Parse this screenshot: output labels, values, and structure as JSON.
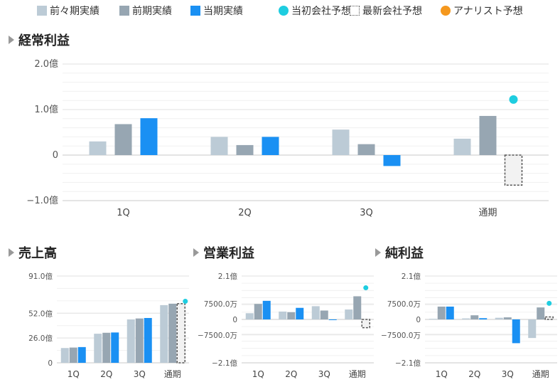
{
  "legend": [
    {
      "label": "前々期実績",
      "type": "square",
      "color": "#bccbd6"
    },
    {
      "label": "前期実績",
      "type": "square",
      "color": "#97a6b2"
    },
    {
      "label": "当期実績",
      "type": "square",
      "color": "#1a90f3"
    },
    {
      "label": "当初会社予想",
      "type": "circle",
      "color": "#1ecde0"
    },
    {
      "label": "最新会社予想",
      "type": "dashed",
      "color": "#555555"
    },
    {
      "label": "アナリスト予想",
      "type": "circle",
      "color": "#f5981e"
    }
  ],
  "colors": {
    "prev2": "#bccbd6",
    "prev1": "#97a6b2",
    "current": "#1a90f3",
    "initial_forecast": "#1ecde0",
    "latest_forecast": "#555555"
  },
  "chart_data": [
    {
      "type": "bar",
      "title": "経常利益",
      "unit": "億",
      "categories": [
        "1Q",
        "2Q",
        "3Q",
        "通期"
      ],
      "ylim": [
        -1.0,
        2.0
      ],
      "yticks": [
        {
          "value": 2.0,
          "label": "2.0億"
        },
        {
          "value": 1.0,
          "label": "1.0億"
        },
        {
          "value": 0,
          "label": "0"
        },
        {
          "value": -1.0,
          "label": "−1.0億"
        }
      ],
      "series": [
        {
          "name": "前々期実績",
          "values": [
            0.3,
            0.4,
            0.56,
            0.36
          ]
        },
        {
          "name": "前期実績",
          "values": [
            0.68,
            0.22,
            0.24,
            0.86
          ]
        },
        {
          "name": "当期実績",
          "values": [
            0.81,
            0.4,
            -0.24,
            null
          ]
        }
      ],
      "initial_forecast": {
        "category": "通期",
        "value": 1.22
      },
      "latest_forecast": {
        "category": "通期",
        "value": -0.66
      }
    },
    {
      "type": "bar",
      "title": "売上高",
      "unit": "億",
      "categories": [
        "1Q",
        "2Q",
        "3Q",
        "通期"
      ],
      "ylim": [
        0,
        91.0
      ],
      "yticks": [
        {
          "value": 91.0,
          "label": "91.0億"
        },
        {
          "value": 52.0,
          "label": "52.0億"
        },
        {
          "value": 26.0,
          "label": "26.0億"
        },
        {
          "value": 0,
          "label": "0"
        }
      ],
      "series": [
        {
          "name": "前々期実績",
          "values": [
            15.5,
            30.5,
            45.5,
            60.5
          ]
        },
        {
          "name": "前期実績",
          "values": [
            16.0,
            31.5,
            46.5,
            62.0
          ]
        },
        {
          "name": "当期実績",
          "values": [
            16.5,
            31.8,
            47.0,
            null
          ]
        }
      ],
      "initial_forecast": {
        "category": "通期",
        "value": 64.5
      },
      "latest_forecast": {
        "category": "通期",
        "value": 62.0
      }
    },
    {
      "type": "bar",
      "title": "営業利益",
      "unit": "億",
      "categories": [
        "1Q",
        "2Q",
        "3Q",
        "通期"
      ],
      "ylim": [
        -2.1,
        2.1
      ],
      "yticks": [
        {
          "value": 2.1,
          "label": "2.1億"
        },
        {
          "value": 0.75,
          "label": "7500.0万"
        },
        {
          "value": 0,
          "label": "0"
        },
        {
          "value": -0.75,
          "label": "−7500.0万"
        },
        {
          "value": -2.1,
          "label": "−2.1億"
        }
      ],
      "series": [
        {
          "name": "前々期実績",
          "values": [
            0.3,
            0.38,
            0.64,
            0.48
          ]
        },
        {
          "name": "前期実績",
          "values": [
            0.75,
            0.35,
            0.43,
            1.12
          ]
        },
        {
          "name": "当期実績",
          "values": [
            0.9,
            0.56,
            -0.01,
            null
          ]
        }
      ],
      "initial_forecast": {
        "category": "通期",
        "value": 1.53
      },
      "latest_forecast": {
        "category": "通期",
        "value": -0.4
      }
    },
    {
      "type": "bar",
      "title": "純利益",
      "unit": "億",
      "categories": [
        "1Q",
        "2Q",
        "3Q",
        "通期"
      ],
      "ylim": [
        -2.1,
        2.1
      ],
      "yticks": [
        {
          "value": 2.1,
          "label": "2.1億"
        },
        {
          "value": 0.75,
          "label": "7500.0万"
        },
        {
          "value": 0,
          "label": "0"
        },
        {
          "value": -0.75,
          "label": "−7500.0万"
        },
        {
          "value": -2.1,
          "label": "−2.1億"
        }
      ],
      "series": [
        {
          "name": "前々期実績",
          "values": [
            0.03,
            0.05,
            0.08,
            -0.9
          ]
        },
        {
          "name": "前期実績",
          "values": [
            0.62,
            0.2,
            0.1,
            0.58
          ]
        },
        {
          "name": "当期実績",
          "values": [
            0.62,
            0.06,
            -1.15,
            null
          ]
        }
      ],
      "initial_forecast": {
        "category": "通期",
        "value": 0.78
      },
      "latest_forecast": {
        "category": "通期",
        "value": 0.12
      }
    }
  ]
}
